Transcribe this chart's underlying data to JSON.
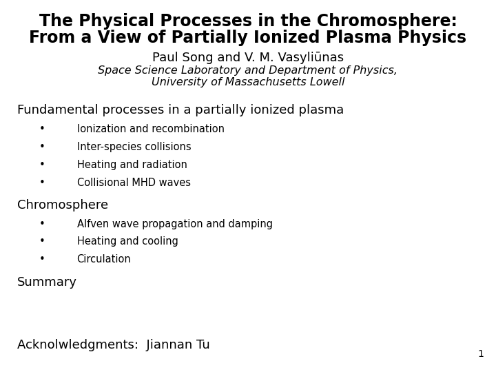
{
  "title_line1": "The Physical Processes in the Chromosphere:",
  "title_line2": "From a View of Partially Ionized Plasma Physics",
  "author": "Paul Song and V. M. Vasyliūnas",
  "affil1": "Space Science Laboratory and Department of Physics,",
  "affil2": "University of Massachusetts Lowell",
  "section1": "Fundamental processes in a partially ionized plasma",
  "bullets1": [
    "Ionization and recombination",
    "Inter-species collisions",
    "Heating and radiation",
    "Collisional MHD waves"
  ],
  "section2": "Chromosphere",
  "bullets2": [
    "Alfven wave propagation and damping",
    "Heating and cooling",
    "Circulation"
  ],
  "section3": "Summary",
  "acknowledgment": "Acknolwledgments:  Jiannan Tu",
  "page_number": "1",
  "bg_color": "#ffffff",
  "text_color": "#000000",
  "title_fontsize": 17,
  "author_fontsize": 13,
  "affil_fontsize": 11.5,
  "section_fontsize": 13,
  "bullet_fontsize": 10.5,
  "page_fontsize": 10
}
